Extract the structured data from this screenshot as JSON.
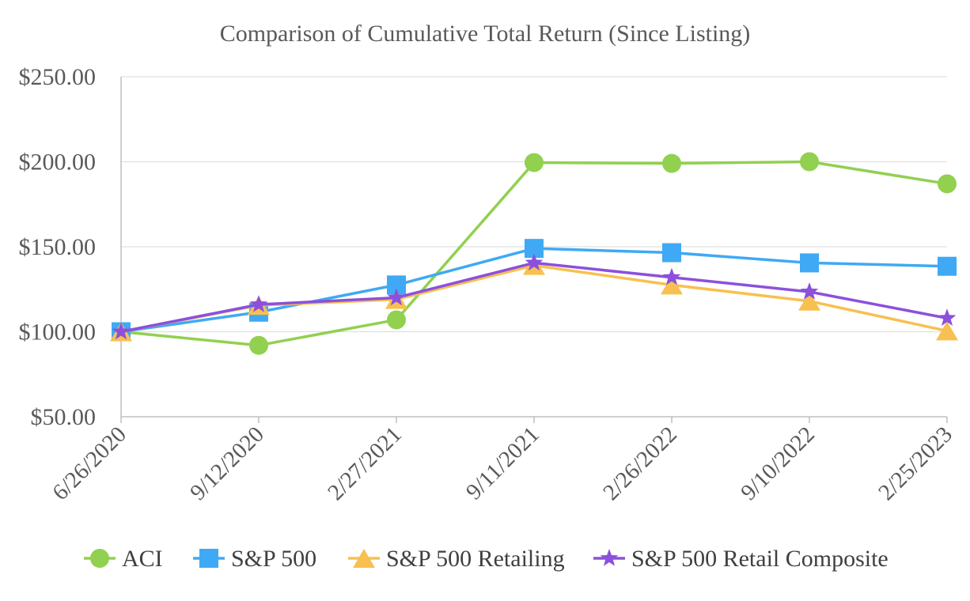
{
  "chart_data": {
    "type": "line",
    "title": "Comparison of Cumulative Total Return (Since Listing)",
    "xlabel": "",
    "ylabel": "",
    "categories": [
      "6/26/2020",
      "9/12/2020",
      "2/27/2021",
      "9/11/2021",
      "2/26/2022",
      "9/10/2022",
      "2/25/2023"
    ],
    "y_ticks": [
      "$50.00",
      "$100.00",
      "$150.00",
      "$200.00",
      "$250.00"
    ],
    "ylim": [
      50,
      250
    ],
    "grid": true,
    "legend_position": "bottom",
    "series": [
      {
        "name": "ACI",
        "marker": "circle",
        "color": "#92d050",
        "values": [
          100,
          92,
          107,
          199.5,
          199,
          200,
          187
        ]
      },
      {
        "name": "S&P 500",
        "marker": "square",
        "color": "#3fa9f5",
        "values": [
          100,
          111.5,
          127.5,
          149,
          146.5,
          140.5,
          138.5
        ]
      },
      {
        "name": "S&P 500 Retailing",
        "marker": "triangle",
        "color": "#f8c050",
        "values": [
          100,
          115.5,
          119,
          139,
          127.5,
          118,
          100.5
        ]
      },
      {
        "name": "S&P 500 Retail Composite",
        "marker": "star",
        "color": "#8c50dc",
        "values": [
          100,
          116,
          120,
          140.5,
          132,
          123.5,
          108
        ]
      }
    ]
  }
}
